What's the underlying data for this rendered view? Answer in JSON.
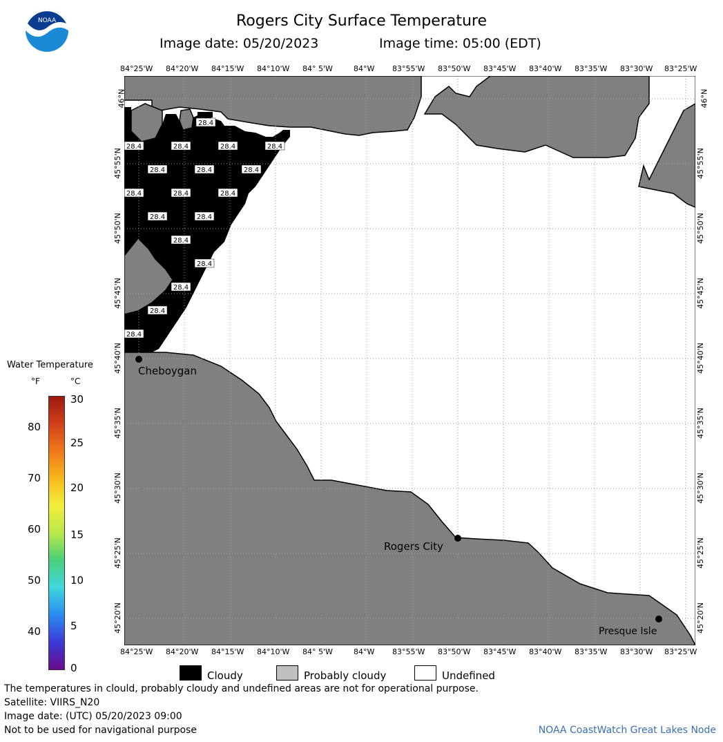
{
  "title": "Rogers City Surface Temperature",
  "image_date_text": "Image date: 05/20/2023",
  "image_time_text": "Image time: 05:00 (EDT)",
  "logo_text": "NOAA",
  "lon_labels": [
    "84°25'W",
    "84°20'W",
    "84°15'W",
    "84°10'W",
    "84° 5'W",
    "84°W",
    "83°55'W",
    "83°50'W",
    "83°45'W",
    "83°40'W",
    "83°35'W",
    "83°30'W",
    "83°25'W"
  ],
  "lat_labels": [
    "46°N",
    "45°55'N",
    "45°50'N",
    "45°45'N",
    "45°40'N",
    "45°35'N",
    "45°30'N",
    "45°25'N",
    "45°20'N"
  ],
  "colorbar": {
    "title": "Water Temperature",
    "unit_f": "°F",
    "unit_c": "°C",
    "f_ticks": [
      "80",
      "70",
      "60",
      "50",
      "40"
    ],
    "c_ticks": [
      "30",
      "25",
      "20",
      "15",
      "10",
      "5",
      "0"
    ],
    "colors": [
      "#6a0a8a",
      "#3a3ad8",
      "#2b8cf0",
      "#3fd6e0",
      "#49d07a",
      "#b8e84a",
      "#f2ee3c",
      "#f7b81c",
      "#f0781a",
      "#d2401a",
      "#9a1a10"
    ]
  },
  "temperature_label": "28.4",
  "cities": [
    {
      "name": "Cheboygan"
    },
    {
      "name": "Rogers City"
    },
    {
      "name": "Presque Isle"
    }
  ],
  "key": {
    "cloudy": "Cloudy",
    "probably_cloudy": "Probably cloudy",
    "undefined": "Undefined",
    "cloudy_color": "#000000",
    "probably_cloudy_color": "#bfbfbf",
    "undefined_color": "#ffffff"
  },
  "land_color": "#808080",
  "footer": {
    "disclaimer": "The temperatures in clould, probably cloudy and undefined areas are not for operational purpose.",
    "satellite": "Satellite: VIIRS_N20",
    "image_date_utc": "Image date: (UTC) 05/20/2023  09:00",
    "nav": "Not to be used for navigational purpose",
    "credit": "NOAA CoastWatch Great Lakes Node"
  }
}
